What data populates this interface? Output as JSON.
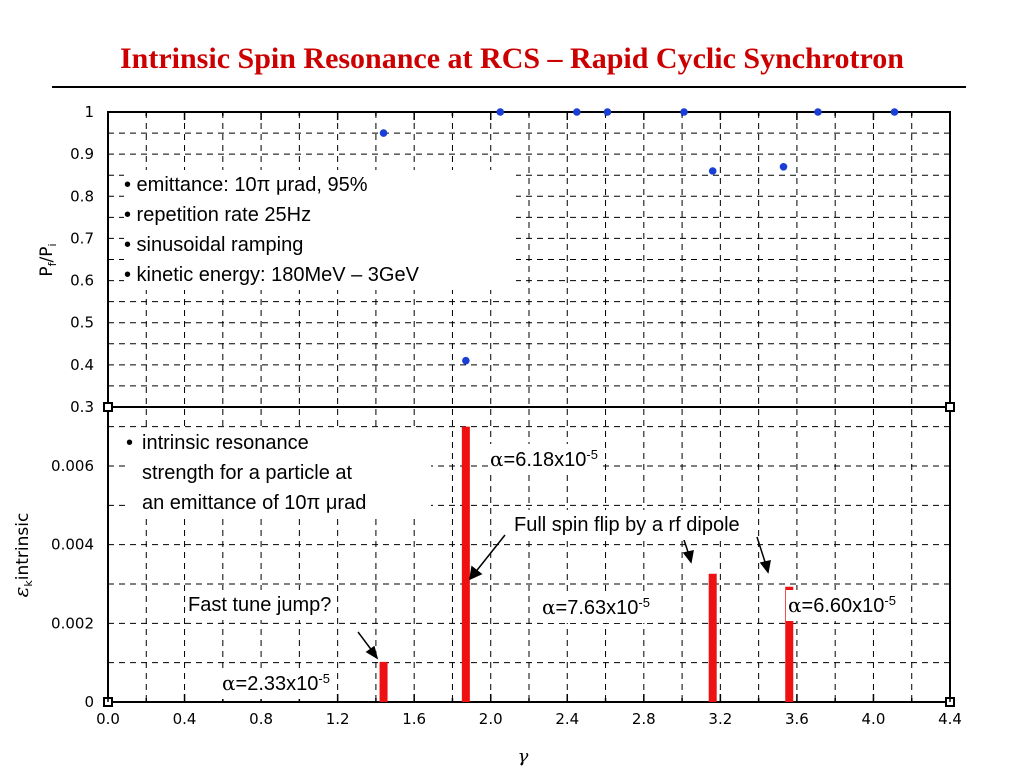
{
  "slide": {
    "title": "Intrinsic Spin Resonance at RCS – Rapid Cyclic Synchrotron",
    "title_color": "#cc0000"
  },
  "chart_data": [
    {
      "type": "scatter",
      "ylabel_main": "P",
      "ylabel_sub1": "f",
      "ylabel_sep": "/P",
      "ylabel_sub2": "i",
      "ylim": [
        0.3,
        1.0
      ],
      "xlim": [
        0.0,
        4.4
      ],
      "grid": true,
      "yticks": [
        "1",
        "0.9",
        "0.8",
        "0.7",
        "0.6",
        "0.5",
        "0.4",
        "0.3"
      ],
      "ytick_values": [
        1.0,
        0.9,
        0.8,
        0.7,
        0.6,
        0.5,
        0.4,
        0.3
      ],
      "color": "#1a3fd6",
      "points": [
        {
          "x": 1.44,
          "y": 0.95
        },
        {
          "x": 1.87,
          "y": 0.41
        },
        {
          "x": 2.05,
          "y": 1.0
        },
        {
          "x": 2.45,
          "y": 1.0
        },
        {
          "x": 2.61,
          "y": 1.0
        },
        {
          "x": 3.01,
          "y": 1.0
        },
        {
          "x": 3.16,
          "y": 0.86
        },
        {
          "x": 3.53,
          "y": 0.87
        },
        {
          "x": 3.71,
          "y": 1.0
        },
        {
          "x": 4.11,
          "y": 1.0
        }
      ]
    },
    {
      "type": "bar",
      "ylabel_main": "ε",
      "ylabel_sub": "k",
      "ylabel_rest": "intrinsic",
      "xlabel": "γ",
      "ylim": [
        0,
        0.0075
      ],
      "xlim": [
        0.0,
        4.4
      ],
      "grid": true,
      "xticks": [
        "0.0",
        "0.4",
        "0.8",
        "1.2",
        "1.6",
        "2.0",
        "2.4",
        "2.8",
        "3.2",
        "3.6",
        "4.0",
        "4.4"
      ],
      "xtick_values": [
        0.0,
        0.4,
        0.8,
        1.2,
        1.6,
        2.0,
        2.4,
        2.8,
        3.2,
        3.6,
        4.0,
        4.4
      ],
      "yticks": [
        "0.006",
        "0.004",
        "0.002",
        "0"
      ],
      "ytick_values": [
        0.006,
        0.004,
        0.002,
        0
      ],
      "color": "#ee1111",
      "bars": [
        {
          "x": 1.44,
          "value": 0.00102
        },
        {
          "x": 1.87,
          "value": 0.007
        },
        {
          "x": 3.16,
          "value": 0.00326
        },
        {
          "x": 3.56,
          "value": 0.00293
        }
      ]
    }
  ],
  "notes": {
    "bullets": [
      "• emittance: 10π μrad, 95%",
      "• repetition rate 25Hz",
      "• sinusoidal ramping",
      "• kinetic energy: 180MeV – 3GeV"
    ],
    "intrinsic": {
      "bullet": "•",
      "lines": [
        "intrinsic resonance",
        "strength for a particle at",
        "an emittance of 10π μrad"
      ]
    },
    "alpha_618": {
      "prefix": "α",
      "text": "=6.18x10",
      "exp": "-5"
    },
    "alpha_763": {
      "prefix": "α",
      "text": "=7.63x10",
      "exp": "-5"
    },
    "alpha_660": {
      "prefix": "α",
      "text": "=6.60x10",
      "exp": "-5"
    },
    "alpha_233": {
      "prefix": "α",
      "text": "=2.33x10",
      "exp": "-5"
    },
    "full_spin_flip": "Full spin flip by a rf dipole",
    "fast_tune_jump": "Fast tune jump?"
  }
}
